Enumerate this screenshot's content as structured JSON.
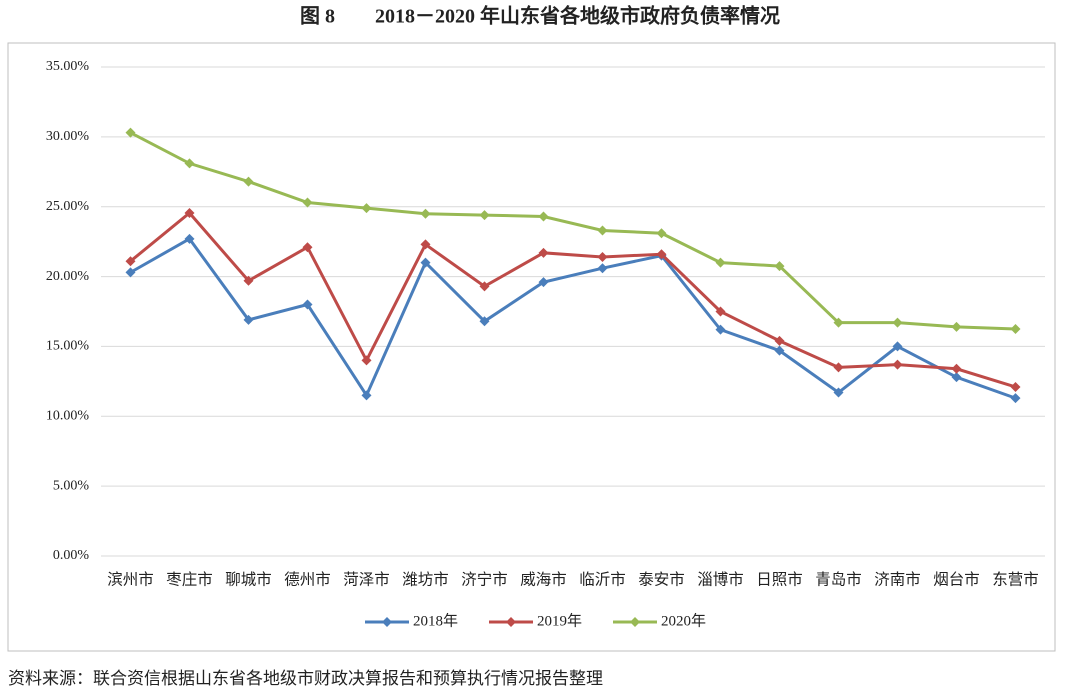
{
  "chart_data": {
    "type": "line",
    "title": "图 8　　2018－2020 年山东省各地级市政府负债率情况",
    "source": "资料来源：联合资信根据山东省各地级市财政决算报告和预算执行情况报告整理",
    "categories": [
      "滨州市",
      "枣庄市",
      "聊城市",
      "德州市",
      "菏泽市",
      "潍坊市",
      "济宁市",
      "威海市",
      "临沂市",
      "泰安市",
      "淄博市",
      "日照市",
      "青岛市",
      "济南市",
      "烟台市",
      "东营市"
    ],
    "series": [
      {
        "name": "2018年",
        "color": "#4a7ebb",
        "values": [
          20.3,
          22.7,
          16.9,
          18.0,
          11.5,
          21.0,
          16.8,
          19.6,
          20.6,
          21.5,
          16.2,
          14.7,
          11.7,
          15.0,
          12.8,
          11.3
        ]
      },
      {
        "name": "2019年",
        "color": "#be4b48",
        "values": [
          21.1,
          24.55,
          19.7,
          22.1,
          14.0,
          22.3,
          19.3,
          21.7,
          21.4,
          21.6,
          17.5,
          15.4,
          13.5,
          13.7,
          13.4,
          12.1
        ]
      },
      {
        "name": "2020年",
        "color": "#98b954",
        "values": [
          30.3,
          28.1,
          26.8,
          25.3,
          24.9,
          24.5,
          24.4,
          24.3,
          23.3,
          23.1,
          21.0,
          20.75,
          16.7,
          16.7,
          16.4,
          16.25
        ]
      }
    ],
    "ylim": [
      0,
      35
    ],
    "yticks": [
      {
        "value": 0,
        "label": "0.00%"
      },
      {
        "value": 5,
        "label": "5.00%"
      },
      {
        "value": 10,
        "label": "10.00%"
      },
      {
        "value": 15,
        "label": "15.00%"
      },
      {
        "value": 20,
        "label": "20.00%"
      },
      {
        "value": 25,
        "label": "25.00%"
      },
      {
        "value": 30,
        "label": "30.00%"
      },
      {
        "value": 35,
        "label": "35.00%"
      }
    ],
    "grid": true,
    "legend": "bottom"
  }
}
